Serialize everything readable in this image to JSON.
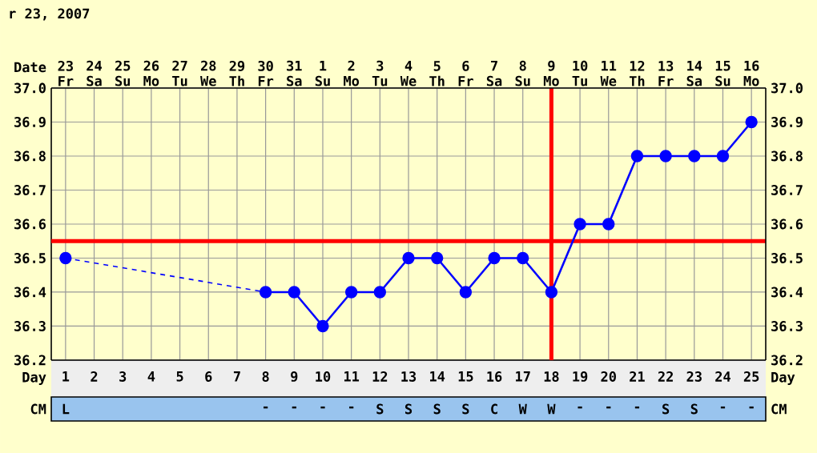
{
  "chart_data": [
    {
      "type": "line",
      "title": "r 23, 2007",
      "xlabel": "Day",
      "x2label": "Date",
      "x": [
        1,
        2,
        3,
        4,
        5,
        6,
        7,
        8,
        9,
        10,
        11,
        12,
        13,
        14,
        15,
        16,
        17,
        18,
        19,
        20,
        21,
        22,
        23,
        24,
        25
      ],
      "xlim": [
        0.5,
        25.5
      ],
      "xticks": [
        1,
        2,
        3,
        4,
        5,
        6,
        7,
        8,
        9,
        10,
        11,
        12,
        13,
        14,
        15,
        16,
        17,
        18,
        19,
        20,
        21,
        22,
        23,
        24,
        25
      ],
      "x2lim": [
        "2007-03-22T12:00",
        "2007-04-16T12:00"
      ],
      "x2ticks": [
        {
          "value": "2007-03-23",
          "label": "23 Fr"
        },
        {
          "value": "2007-03-24",
          "label": "24 Sa"
        },
        {
          "value": "2007-03-25",
          "label": "25 Su"
        },
        {
          "value": "2007-03-26",
          "label": "26 Mo"
        },
        {
          "value": "2007-03-27",
          "label": "27 Tu"
        },
        {
          "value": "2007-03-28",
          "label": "28 We"
        },
        {
          "value": "2007-03-29",
          "label": "29 Th"
        },
        {
          "value": "2007-03-30",
          "label": "30 Fr"
        },
        {
          "value": "2007-03-31",
          "label": "31 Sa"
        },
        {
          "value": "2007-04-01",
          "label": "1 Su"
        },
        {
          "value": "2007-04-02",
          "label": "2 Mo"
        },
        {
          "value": "2007-04-03",
          "label": "3 Tu"
        },
        {
          "value": "2007-04-04",
          "label": "4 We"
        },
        {
          "value": "2007-04-05",
          "label": "5 Th"
        },
        {
          "value": "2007-04-06",
          "label": "6 Fr"
        },
        {
          "value": "2007-04-07",
          "label": "7 Sa"
        },
        {
          "value": "2007-04-08",
          "label": "8 Su"
        },
        {
          "value": "2007-04-09",
          "label": "9 Mo"
        },
        {
          "value": "2007-04-10",
          "label": "10 Tu"
        },
        {
          "value": "2007-04-11",
          "label": "11 We"
        },
        {
          "value": "2007-04-12",
          "label": "12 Th"
        },
        {
          "value": "2007-04-13",
          "label": "13 Fr"
        },
        {
          "value": "2007-04-14",
          "label": "14 Sa"
        },
        {
          "value": "2007-04-15",
          "label": "15 Su"
        },
        {
          "value": "2007-04-16",
          "label": "16 Mo"
        }
      ],
      "ylim": [
        36.2,
        37.0
      ],
      "yticks": [
        {
          "value": 36.2,
          "label": "36.2"
        },
        {
          "value": 36.3,
          "label": "36.3"
        },
        {
          "value": 36.4,
          "label": "36.4"
        },
        {
          "value": 36.5,
          "label": "36.5"
        },
        {
          "value": 36.6,
          "label": "36.6"
        },
        {
          "value": 36.7,
          "label": "36.7"
        },
        {
          "value": 36.8,
          "label": "36.8"
        },
        {
          "value": 36.9,
          "label": "36.9"
        },
        {
          "value": 37.0,
          "label": "37.0"
        }
      ],
      "y2lim": [
        36.2,
        37.0
      ],
      "y2ticks": [
        {
          "value": 36.2,
          "label": "36.2"
        },
        {
          "value": 36.3,
          "label": "36.3"
        },
        {
          "value": 36.4,
          "label": "36.4"
        },
        {
          "value": 36.5,
          "label": "36.5"
        },
        {
          "value": 36.6,
          "label": "36.6"
        },
        {
          "value": 36.7,
          "label": "36.7"
        },
        {
          "value": 36.8,
          "label": "36.8"
        },
        {
          "value": 36.9,
          "label": "36.9"
        },
        {
          "value": 37.0,
          "label": "37.0"
        }
      ],
      "series": [
        {
          "color": "#0000ff",
          "values": [
            36.5,
            null,
            null,
            null,
            null,
            null,
            null,
            36.4,
            36.4,
            36.3,
            36.4,
            36.4,
            36.5,
            36.5,
            36.4,
            36.5,
            36.5,
            36.4,
            36.6,
            36.6,
            36.8,
            36.8,
            36.8,
            36.8,
            36.9
          ]
        }
      ],
      "marker": "circle",
      "line_style": "solid",
      "grid": true,
      "ref_lines": [
        {
          "axis": "y",
          "value": 36.55,
          "color": "#ff0000"
        },
        {
          "axis": "x",
          "value": 18,
          "color": "#ff0000"
        }
      ]
    },
    {
      "type": "other",
      "ylabel": "CM",
      "categories": [
        "L",
        null,
        null,
        null,
        null,
        null,
        null,
        "-",
        "-",
        "-",
        "-",
        "S",
        "S",
        "S",
        "S",
        "C",
        "W",
        "W",
        "-",
        "-",
        "-",
        "S",
        "S",
        "-",
        "-"
      ]
    }
  ]
}
